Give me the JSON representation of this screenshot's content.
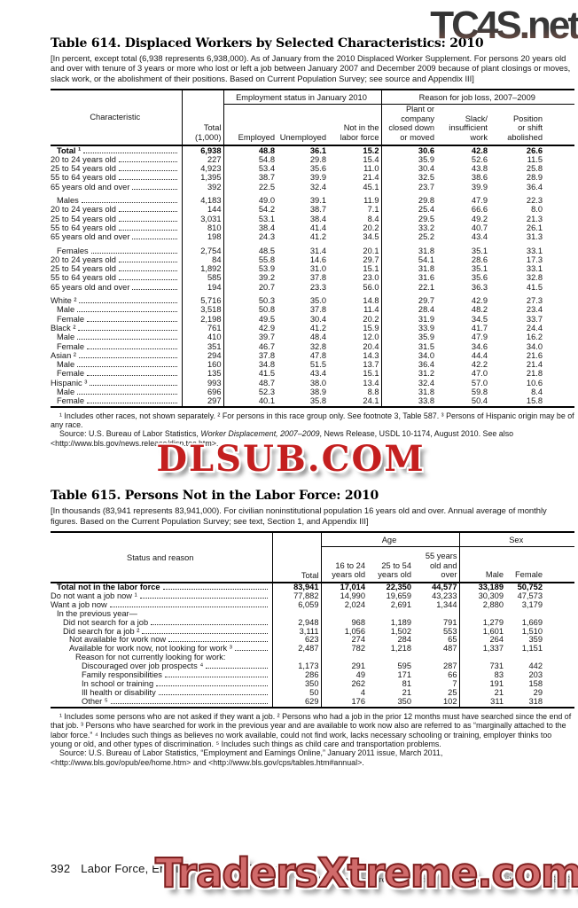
{
  "watermarks": {
    "top": "TC4S.net",
    "middle": "DLSUB.COM",
    "bottom": "TradersXtreme.com"
  },
  "colors": {
    "watermark_red": "#c41f1f",
    "watermark_salmon": "#d06a6a",
    "watermark_gradient_dark": "#2e2e2e",
    "watermark_gradient_rust": "#8a5548"
  },
  "table614": {
    "title": "Table 614. Displaced Workers by Selected Characteristics: 2010",
    "note": "[In percent, except total (6,938 represents 6,938,000). As of January from the 2010 Displaced Worker Supplement. For persons 20 years old and over with tenure of 3 years or more who lost or left a job between January 2007 and December 2009 because of plant closings or moves, slack work, or the abolishment of their positions. Based on Current Population Survey; see source and Appendix III]",
    "headers": {
      "characteristic": "Characteristic",
      "total": "Total\n(1,000)",
      "group_employment": "Employment status in January 2010",
      "group_reason": "Reason for job loss, 2007–2009",
      "employed": "Employed",
      "unemployed": "Unemployed",
      "not_in_labor_force": "Not in the\nlabor force",
      "plant_closed": "Plant or\ncompany\nclosed down\nor moved",
      "slack_work": "Slack/\ninsufficient\nwork",
      "position_abolished": "Position\nor shift\nabolished"
    },
    "rows": [
      {
        "label": "Total ¹",
        "indent": 1,
        "bold": true,
        "values": [
          "6,938",
          "48.8",
          "36.1",
          "15.2",
          "30.6",
          "42.8",
          "26.6"
        ]
      },
      {
        "label": "20 to 24 years old",
        "indent": 0,
        "values": [
          "227",
          "54.8",
          "29.8",
          "15.4",
          "35.9",
          "52.6",
          "11.5"
        ]
      },
      {
        "label": "25 to 54 years old",
        "indent": 0,
        "values": [
          "4,923",
          "53.4",
          "35.6",
          "11.0",
          "30.4",
          "43.8",
          "25.8"
        ]
      },
      {
        "label": "55 to 64 years old",
        "indent": 0,
        "values": [
          "1,395",
          "38.7",
          "39.9",
          "21.4",
          "32.5",
          "38.6",
          "28.9"
        ]
      },
      {
        "label": "65 years old and over",
        "indent": 0,
        "values": [
          "392",
          "22.5",
          "32.4",
          "45.1",
          "23.7",
          "39.9",
          "36.4"
        ]
      },
      {
        "gap": true
      },
      {
        "label": "Males",
        "indent": 1,
        "values": [
          "4,183",
          "49.0",
          "39.1",
          "11.9",
          "29.8",
          "47.9",
          "22.3"
        ]
      },
      {
        "label": "20 to 24 years old",
        "indent": 0,
        "values": [
          "144",
          "54.2",
          "38.7",
          "7.1",
          "25.4",
          "66.6",
          "8.0"
        ]
      },
      {
        "label": "25 to 54 years old",
        "indent": 0,
        "values": [
          "3,031",
          "53.1",
          "38.4",
          "8.4",
          "29.5",
          "49.2",
          "21.3"
        ]
      },
      {
        "label": "55 to 64 years old",
        "indent": 0,
        "values": [
          "810",
          "38.4",
          "41.4",
          "20.2",
          "33.2",
          "40.7",
          "26.1"
        ]
      },
      {
        "label": "65 years old and over",
        "indent": 0,
        "values": [
          "198",
          "24.3",
          "41.2",
          "34.5",
          "25.2",
          "43.4",
          "31.3"
        ]
      },
      {
        "gap": true
      },
      {
        "label": "Females",
        "indent": 1,
        "values": [
          "2,754",
          "48.5",
          "31.4",
          "20.1",
          "31.8",
          "35.1",
          "33.1"
        ]
      },
      {
        "label": "20 to 24 years old",
        "indent": 0,
        "values": [
          "84",
          "55.8",
          "14.6",
          "29.7",
          "54.1",
          "28.6",
          "17.3"
        ]
      },
      {
        "label": "25 to 54 years old",
        "indent": 0,
        "values": [
          "1,892",
          "53.9",
          "31.0",
          "15.1",
          "31.8",
          "35.1",
          "33.1"
        ]
      },
      {
        "label": "55 to 64 years old",
        "indent": 0,
        "values": [
          "585",
          "39.2",
          "37.8",
          "23.0",
          "31.6",
          "35.6",
          "32.8"
        ]
      },
      {
        "label": "65 years old and over",
        "indent": 0,
        "values": [
          "194",
          "20.7",
          "23.3",
          "56.0",
          "22.1",
          "36.3",
          "41.5"
        ]
      },
      {
        "gap": true
      },
      {
        "label": "White ²",
        "indent": 0,
        "values": [
          "5,716",
          "50.3",
          "35.0",
          "14.8",
          "29.7",
          "42.9",
          "27.3"
        ]
      },
      {
        "label": "Male",
        "indent": 1,
        "values": [
          "3,518",
          "50.8",
          "37.8",
          "11.4",
          "28.4",
          "48.2",
          "23.4"
        ]
      },
      {
        "label": "Female",
        "indent": 1,
        "values": [
          "2,198",
          "49.5",
          "30.4",
          "20.2",
          "31.9",
          "34.5",
          "33.7"
        ]
      },
      {
        "label": "Black ²",
        "indent": 0,
        "values": [
          "761",
          "42.9",
          "41.2",
          "15.9",
          "33.9",
          "41.7",
          "24.4"
        ]
      },
      {
        "label": "Male",
        "indent": 1,
        "values": [
          "410",
          "39.7",
          "48.4",
          "12.0",
          "35.9",
          "47.9",
          "16.2"
        ]
      },
      {
        "label": "Female",
        "indent": 1,
        "values": [
          "351",
          "46.7",
          "32.8",
          "20.4",
          "31.5",
          "34.6",
          "34.0"
        ]
      },
      {
        "label": "Asian ²",
        "indent": 0,
        "values": [
          "294",
          "37.8",
          "47.8",
          "14.3",
          "34.0",
          "44.4",
          "21.6"
        ]
      },
      {
        "label": "Male",
        "indent": 1,
        "values": [
          "160",
          "34.8",
          "51.5",
          "13.7",
          "36.4",
          "42.2",
          "21.4"
        ]
      },
      {
        "label": "Female",
        "indent": 1,
        "values": [
          "135",
          "41.5",
          "43.4",
          "15.1",
          "31.2",
          "47.0",
          "21.8"
        ]
      },
      {
        "label": "Hispanic ³",
        "indent": 0,
        "values": [
          "993",
          "48.7",
          "38.0",
          "13.4",
          "32.4",
          "57.0",
          "10.6"
        ]
      },
      {
        "label": "Male",
        "indent": 1,
        "values": [
          "696",
          "52.3",
          "38.9",
          "8.8",
          "31.8",
          "59.8",
          "8.4"
        ]
      },
      {
        "label": "Female",
        "indent": 1,
        "values": [
          "297",
          "40.1",
          "35.8",
          "24.1",
          "33.8",
          "50.4",
          "15.8"
        ]
      }
    ],
    "footnote": "¹ Includes other races, not shown separately. ² For persons in this race group only. See footnote 3, Table 587. ³ Persons of Hispanic origin may be of any race.",
    "source_prefix": "Source: U.S. Bureau of Labor Statistics, ",
    "source_italic": "Worker Displacement, 2007–2009",
    "source_suffix": ", News Release, USDL 10-1174, August 2010. See also <http://www.bls.gov/news.release/disp.toc.htm>."
  },
  "table615": {
    "title": "Table 615. Persons Not in the Labor Force: 2010",
    "note": "[In thousands (83,941 represents 83,941,000). For civilian noninstitutional population 16 years old and over. Annual average of monthly figures. Based on the Current Population Survey; see text, Section 1, and Appendix III]",
    "headers": {
      "status": "Status and reason",
      "total": "Total",
      "group_age": "Age",
      "group_sex": "Sex",
      "age_16_24": "16 to 24\nyears old",
      "age_25_54": "25 to 54\nyears old",
      "age_55_over": "55 years\nold and\nover",
      "male": "Male",
      "female": "Female"
    },
    "rows": [
      {
        "label": "Total not in the labor force",
        "indent": 1,
        "bold": true,
        "values": [
          "83,941",
          "17,014",
          "22,350",
          "44,577",
          "33,189",
          "50,752"
        ]
      },
      {
        "label": "Do not want a job now ¹",
        "indent": 0,
        "values": [
          "77,882",
          "14,990",
          "19,659",
          "43,233",
          "30,309",
          "47,573"
        ]
      },
      {
        "label": "Want a job now",
        "indent": 0,
        "values": [
          "6,059",
          "2,024",
          "2,691",
          "1,344",
          "2,880",
          "3,179"
        ]
      },
      {
        "label": "In the previous year—",
        "indent": 1
      },
      {
        "label": "Did not search for a job",
        "indent": 2,
        "values": [
          "2,948",
          "968",
          "1,189",
          "791",
          "1,279",
          "1,669"
        ]
      },
      {
        "label": "Did search for a job ²",
        "indent": 2,
        "values": [
          "3,111",
          "1,056",
          "1,502",
          "553",
          "1,601",
          "1,510"
        ]
      },
      {
        "label": "Not available for work now",
        "indent": 3,
        "values": [
          "623",
          "274",
          "284",
          "65",
          "264",
          "359"
        ]
      },
      {
        "label": "Available for work now, not looking for work ³",
        "indent": 3,
        "values": [
          "2,487",
          "782",
          "1,218",
          "487",
          "1,337",
          "1,151"
        ]
      },
      {
        "label": "Reason for not currently looking for work:",
        "indent": 4
      },
      {
        "label": "Discouraged over job prospects ⁴",
        "indent": 5,
        "values": [
          "1,173",
          "291",
          "595",
          "287",
          "731",
          "442"
        ]
      },
      {
        "label": "Family responsibilities",
        "indent": 5,
        "values": [
          "286",
          "49",
          "171",
          "66",
          "83",
          "203"
        ]
      },
      {
        "label": "In school or training",
        "indent": 5,
        "values": [
          "350",
          "262",
          "81",
          "7",
          "191",
          "158"
        ]
      },
      {
        "label": "Ill health or disability",
        "indent": 5,
        "values": [
          "50",
          "4",
          "21",
          "25",
          "21",
          "29"
        ]
      },
      {
        "label": "Other ⁵",
        "indent": 5,
        "values": [
          "629",
          "176",
          "350",
          "102",
          "311",
          "318"
        ]
      }
    ],
    "footnote": "¹ Includes some persons who are not asked if they want a job. ² Persons who had a job in the prior 12 months must have searched since the end of that job. ³ Persons who have searched for work in the previous year and are available to work now also are referred to as “marginally attached to the labor force.” ⁴ Includes such things as believes no work available, could not find work, lacks necessary schooling or training, employer thinks too young or old, and other types of discrimination. ⁵ Includes such things as child care and transportation problems.",
    "source": "Source: U.S. Bureau of Labor Statistics, “Employment and Earnings Online,” January 2011 issue, March 2011, <http://www.bls.gov/opub/ee/home.htm> and <http://www.bls.gov/cps/tables.htm#annual>."
  },
  "footer": {
    "page": "392",
    "chapter": "Labor Force, Employment, and Earnings",
    "credit": "U.S. Census Bureau, Statistical Abstract of the United States: 2012"
  }
}
